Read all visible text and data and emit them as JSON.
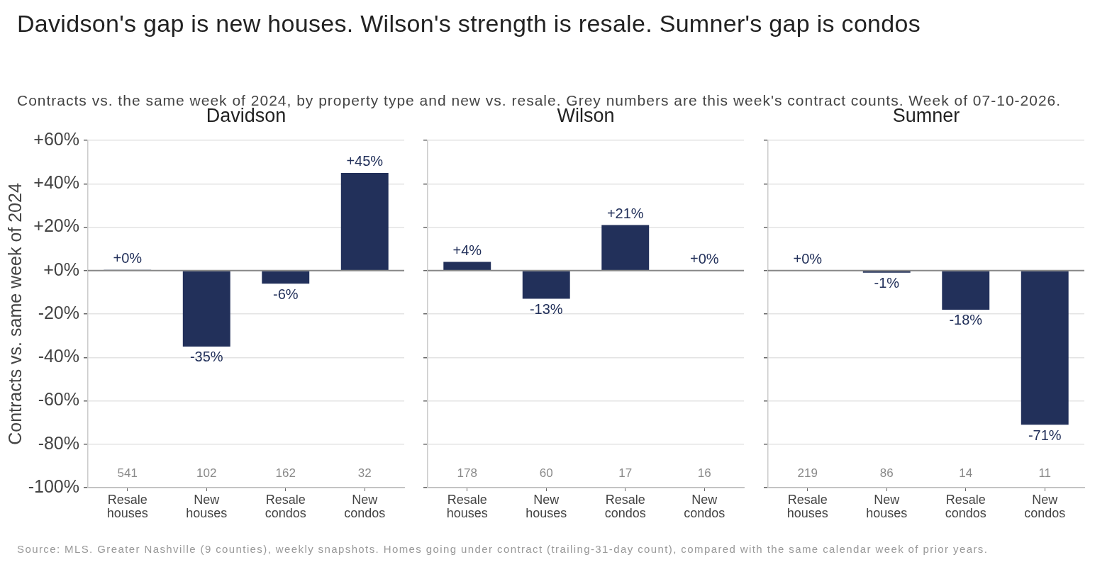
{
  "chart_data": [
    {
      "type": "other",
      "title": "Davidson's gap is new houses. Wilson's strength is resale. Sumner's gap is condos",
      "subtitle": "Contracts vs. the same week of 2024, by property type and new vs. resale. Grey numbers are this week's contract counts. Week of 07-10-2026.",
      "annotations": [
        "Source: MLS. Greater Nashville (9 counties), weekly snapshots. Homes going under contract (trailing-31-day count), compared with the same calendar week of prior years."
      ]
    },
    {
      "type": "bar",
      "title": "Davidson",
      "ylabel": "Contracts vs. same week of 2024",
      "categories": [
        "Resale houses",
        "New houses",
        "Resale condos",
        "New condos"
      ],
      "values": [
        0.3,
        -35,
        -6,
        45
      ],
      "value_labels": [
        "+0%",
        "-35%",
        "-6%",
        "+45%"
      ],
      "color": "#22305a",
      "ylim": [
        -100,
        60
      ],
      "yticks": [
        {
          "value": -100,
          "label": "-100%"
        },
        {
          "value": -80,
          "label": "-80%"
        },
        {
          "value": -60,
          "label": "-60%"
        },
        {
          "value": -40,
          "label": "-40%"
        },
        {
          "value": -20,
          "label": "-20%"
        },
        {
          "value": 0,
          "label": "+0%"
        },
        {
          "value": 20,
          "label": "+20%"
        },
        {
          "value": 40,
          "label": "+40%"
        },
        {
          "value": 60,
          "label": "+60%"
        }
      ],
      "grid": "y",
      "ref_lines": [
        {
          "axis": "y",
          "value": 0,
          "color": "#888888"
        }
      ],
      "annotations": [
        "541",
        "102",
        "162",
        "32"
      ]
    },
    {
      "type": "bar",
      "title": "Wilson",
      "categories": [
        "Resale houses",
        "New houses",
        "Resale condos",
        "New condos"
      ],
      "values": [
        4,
        -13,
        21,
        0
      ],
      "value_labels": [
        "+4%",
        "-13%",
        "+21%",
        "+0%"
      ],
      "color": "#22305a",
      "ylim": [
        -100,
        60
      ],
      "yticks": [
        -100,
        -80,
        -60,
        -40,
        -20,
        0,
        20,
        40,
        60
      ],
      "grid": "y",
      "tick_labels": "x",
      "ref_lines": [
        {
          "axis": "y",
          "value": 0,
          "color": "#888888"
        }
      ],
      "annotations": [
        "178",
        "60",
        "17",
        "16"
      ]
    },
    {
      "type": "bar",
      "title": "Sumner",
      "categories": [
        "Resale houses",
        "New houses",
        "Resale condos",
        "New condos"
      ],
      "values": [
        0,
        -1,
        -18,
        -71
      ],
      "value_labels": [
        "+0%",
        "-1%",
        "-18%",
        "-71%"
      ],
      "color": "#22305a",
      "ylim": [
        -100,
        60
      ],
      "yticks": [
        -100,
        -80,
        -60,
        -40,
        -20,
        0,
        20,
        40,
        60
      ],
      "grid": "y",
      "tick_labels": "x",
      "ref_lines": [
        {
          "axis": "y",
          "value": 0,
          "color": "#888888"
        }
      ],
      "annotations": [
        "219",
        "86",
        "14",
        "11"
      ]
    }
  ]
}
